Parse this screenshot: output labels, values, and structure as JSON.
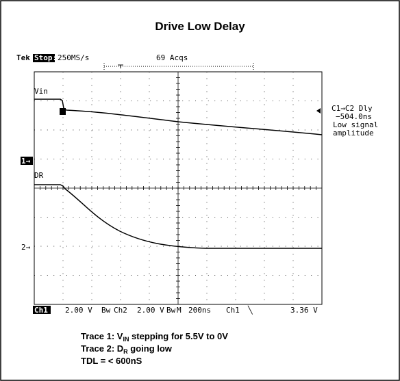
{
  "title": "Drive Low Delay",
  "scope": {
    "brand": "Tek",
    "state": "Stop:",
    "sample_rate": "250MS/s",
    "acquisitions": "69 Acqs",
    "trace_labels": [
      "Vin",
      "DR"
    ],
    "channel_markers": [
      "1→",
      "2→"
    ],
    "measurement": [
      "C1→C2 Dly",
      "−504.0ns",
      "Low signal",
      "amplitude"
    ],
    "status": {
      "ch1": "Ch1",
      "ch1_scale": "2.00 V",
      "bw1": "Bw",
      "ch2": "Ch2",
      "ch2_scale": "2.00 V",
      "bw2": "Bw",
      "mode": "M",
      "timebase": "200ns",
      "trig_source": "Ch1",
      "trig_slope": "╲",
      "trig_level": "3.36 V"
    }
  },
  "captions": [
    {
      "prefix": "Trace 1: V",
      "sub": "IN",
      "suffix": " stepping for 5.5V to 0V"
    },
    {
      "prefix": "Trace 2: D",
      "sub": "R",
      "suffix": " going low"
    },
    {
      "text": "TDL = < 600nS"
    }
  ]
}
